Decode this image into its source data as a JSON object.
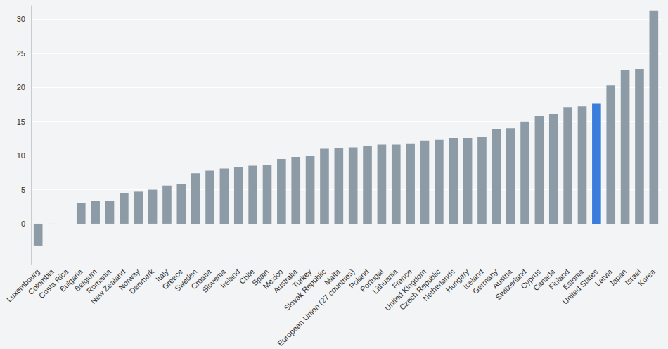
{
  "chart_data": {
    "type": "bar",
    "categories": [
      "Luxembourg",
      "Colombia",
      "Costa Rica",
      "Bulgaria",
      "Belgium",
      "Romania",
      "New Zealand",
      "Norway",
      "Denmark",
      "Italy",
      "Greece",
      "Sweden",
      "Croatia",
      "Slovenia",
      "Ireland",
      "Chile",
      "Spain",
      "Mexico",
      "Australia",
      "Turkey",
      "Slovak Republic",
      "Malta",
      "European Union (27 countries)",
      "Poland",
      "Portugal",
      "Lithuania",
      "France",
      "United Kingdom",
      "Czech Republic",
      "Netherlands",
      "Hungary",
      "Iceland",
      "Germany",
      "Austria",
      "Switzerland",
      "Cyprus",
      "Canada",
      "Finland",
      "Estonia",
      "United States",
      "Latvia",
      "Japan",
      "Israel",
      "Korea"
    ],
    "values": [
      -3.2,
      -0.1,
      0,
      3.0,
      3.3,
      3.4,
      4.5,
      4.7,
      5.0,
      5.6,
      5.8,
      7.4,
      7.8,
      8.1,
      8.3,
      8.5,
      8.6,
      9.5,
      9.8,
      9.9,
      11.0,
      11.1,
      11.2,
      11.4,
      11.6,
      11.6,
      11.8,
      12.2,
      12.3,
      12.6,
      12.6,
      12.8,
      13.9,
      14.0,
      15.0,
      15.8,
      16.1,
      17.1,
      17.2,
      17.6,
      20.3,
      22.5,
      22.7,
      31.3
    ],
    "colors": [
      "#8d9ba6",
      "#8d9ba6",
      "#8d9ba6",
      "#8d9ba6",
      "#8d9ba6",
      "#8d9ba6",
      "#8d9ba6",
      "#8d9ba6",
      "#8d9ba6",
      "#8d9ba6",
      "#8d9ba6",
      "#8d9ba6",
      "#8d9ba6",
      "#8d9ba6",
      "#8d9ba6",
      "#8d9ba6",
      "#8d9ba6",
      "#8d9ba6",
      "#8d9ba6",
      "#8d9ba6",
      "#8d9ba6",
      "#8d9ba6",
      "#8d9ba6",
      "#8d9ba6",
      "#8d9ba6",
      "#8d9ba6",
      "#8d9ba6",
      "#8d9ba6",
      "#8d9ba6",
      "#8d9ba6",
      "#8d9ba6",
      "#8d9ba6",
      "#8d9ba6",
      "#8d9ba6",
      "#8d9ba6",
      "#8d9ba6",
      "#8d9ba6",
      "#8d9ba6",
      "#8d9ba6",
      "#3b7ddd",
      "#8d9ba6",
      "#8d9ba6",
      "#8d9ba6",
      "#8d9ba6"
    ],
    "ylim": [
      -6,
      32
    ],
    "yticks": [
      0,
      5,
      10,
      15,
      20,
      25,
      30
    ],
    "grid": true
  }
}
